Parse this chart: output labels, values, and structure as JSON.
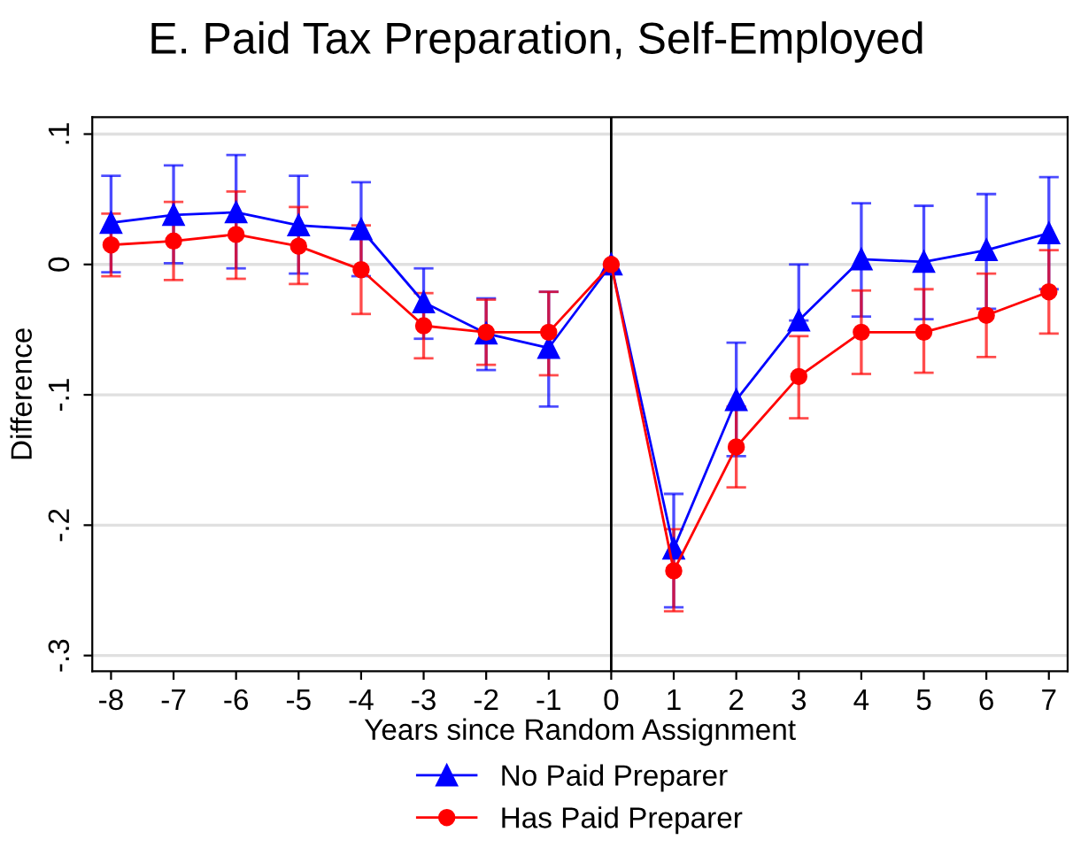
{
  "chart_data": {
    "type": "line",
    "title": "E. Paid Tax Preparation, Self-Employed",
    "xlabel": "Years since Random Assignment",
    "ylabel": "Difference",
    "x": [
      -8,
      -7,
      -6,
      -5,
      -4,
      -3,
      -2,
      -1,
      0,
      1,
      2,
      3,
      4,
      5,
      6,
      7
    ],
    "series": [
      {
        "name": "No Paid Preparer",
        "color": "#0000ff",
        "marker": "triangle",
        "values": [
          0.032,
          0.038,
          0.04,
          0.03,
          0.027,
          -0.029,
          -0.053,
          -0.064,
          0,
          -0.218,
          -0.104,
          -0.043,
          0.004,
          0.002,
          0.011,
          0.024
        ],
        "errors": [
          [
            -0.006,
            0.068
          ],
          [
            0.001,
            0.076
          ],
          [
            -0.003,
            0.084
          ],
          [
            -0.007,
            0.068
          ],
          [
            -0.009,
            0.063
          ],
          [
            -0.057,
            -0.003
          ],
          [
            -0.081,
            -0.026
          ],
          [
            -0.109,
            -0.021
          ],
          null,
          [
            -0.263,
            -0.176
          ],
          [
            -0.147,
            -0.06
          ],
          [
            -0.043,
            0.0
          ],
          [
            -0.04,
            0.047
          ],
          [
            -0.042,
            0.045
          ],
          [
            -0.034,
            0.054
          ],
          [
            -0.019,
            0.067
          ]
        ]
      },
      {
        "name": "Has Paid Preparer",
        "color": "#ff0000",
        "marker": "circle",
        "values": [
          0.015,
          0.018,
          0.023,
          0.014,
          -0.004,
          -0.047,
          -0.052,
          -0.052,
          0,
          -0.235,
          -0.14,
          -0.086,
          -0.052,
          -0.052,
          -0.039,
          -0.021
        ],
        "errors": [
          [
            -0.009,
            0.039
          ],
          [
            -0.012,
            0.048
          ],
          [
            -0.011,
            0.056
          ],
          [
            -0.015,
            0.044
          ],
          [
            -0.038,
            0.03
          ],
          [
            -0.072,
            -0.022
          ],
          [
            -0.077,
            -0.027
          ],
          [
            -0.085,
            -0.021
          ],
          null,
          [
            -0.266,
            -0.203
          ],
          [
            -0.171,
            -0.109
          ],
          [
            -0.118,
            -0.055
          ],
          [
            -0.084,
            -0.02
          ],
          [
            -0.083,
            -0.019
          ],
          [
            -0.071,
            -0.007
          ],
          [
            -0.053,
            0.011
          ]
        ]
      }
    ],
    "xlim": [
      -8.3,
      7.3
    ],
    "xticks": [
      -8,
      -7,
      -6,
      -5,
      -4,
      -3,
      -2,
      -1,
      0,
      1,
      2,
      3,
      4,
      5,
      6,
      7
    ],
    "ylim": [
      -0.312,
      0.113
    ],
    "yticks": [
      {
        "value": -0.3,
        "label": "-.3"
      },
      {
        "value": -0.2,
        "label": "-.2"
      },
      {
        "value": -0.1,
        "label": "-.1"
      },
      0,
      {
        "value": 0.1,
        "label": ".1"
      }
    ],
    "ref_lines": [
      {
        "axis": "x",
        "value": 0,
        "color": "#000000"
      }
    ],
    "grid": "y",
    "legend": "bottom"
  }
}
